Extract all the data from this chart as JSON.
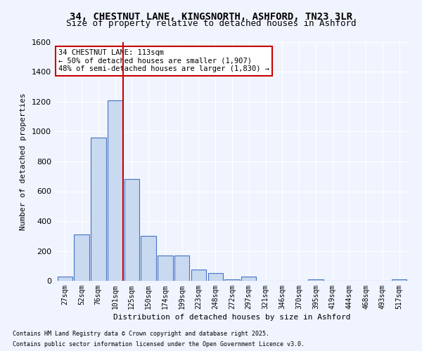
{
  "title_line1": "34, CHESTNUT LANE, KINGSNORTH, ASHFORD, TN23 3LR",
  "title_line2": "Size of property relative to detached houses in Ashford",
  "xlabel": "Distribution of detached houses by size in Ashford",
  "ylabel": "Number of detached properties",
  "footer_line1": "Contains HM Land Registry data © Crown copyright and database right 2025.",
  "footer_line2": "Contains public sector information licensed under the Open Government Licence v3.0.",
  "annotation_line1": "34 CHESTNUT LANE: 113sqm",
  "annotation_line2": "← 50% of detached houses are smaller (1,907)",
  "annotation_line3": "48% of semi-detached houses are larger (1,830) →",
  "bar_color": "#c9d9f0",
  "bar_edge_color": "#4472c4",
  "vline_color": "#cc0000",
  "vline_x": 4,
  "categories": [
    "27sqm",
    "52sqm",
    "76sqm",
    "101sqm",
    "125sqm",
    "150sqm",
    "174sqm",
    "199sqm",
    "223sqm",
    "248sqm",
    "272sqm",
    "297sqm",
    "321sqm",
    "346sqm",
    "370sqm",
    "395sqm",
    "419sqm",
    "444sqm",
    "468sqm",
    "493sqm",
    "517sqm"
  ],
  "values": [
    30,
    310,
    960,
    1210,
    680,
    300,
    170,
    170,
    75,
    50,
    10,
    30,
    0,
    0,
    0,
    10,
    0,
    0,
    0,
    0,
    10
  ],
  "ylim": [
    0,
    1600
  ],
  "yticks": [
    0,
    200,
    400,
    600,
    800,
    1000,
    1200,
    1400,
    1600
  ],
  "background_color": "#f0f4ff",
  "plot_background": "#f0f4ff",
  "grid_color": "#ffffff",
  "annotation_box_color": "#ffffff",
  "annotation_box_edge": "#cc0000"
}
